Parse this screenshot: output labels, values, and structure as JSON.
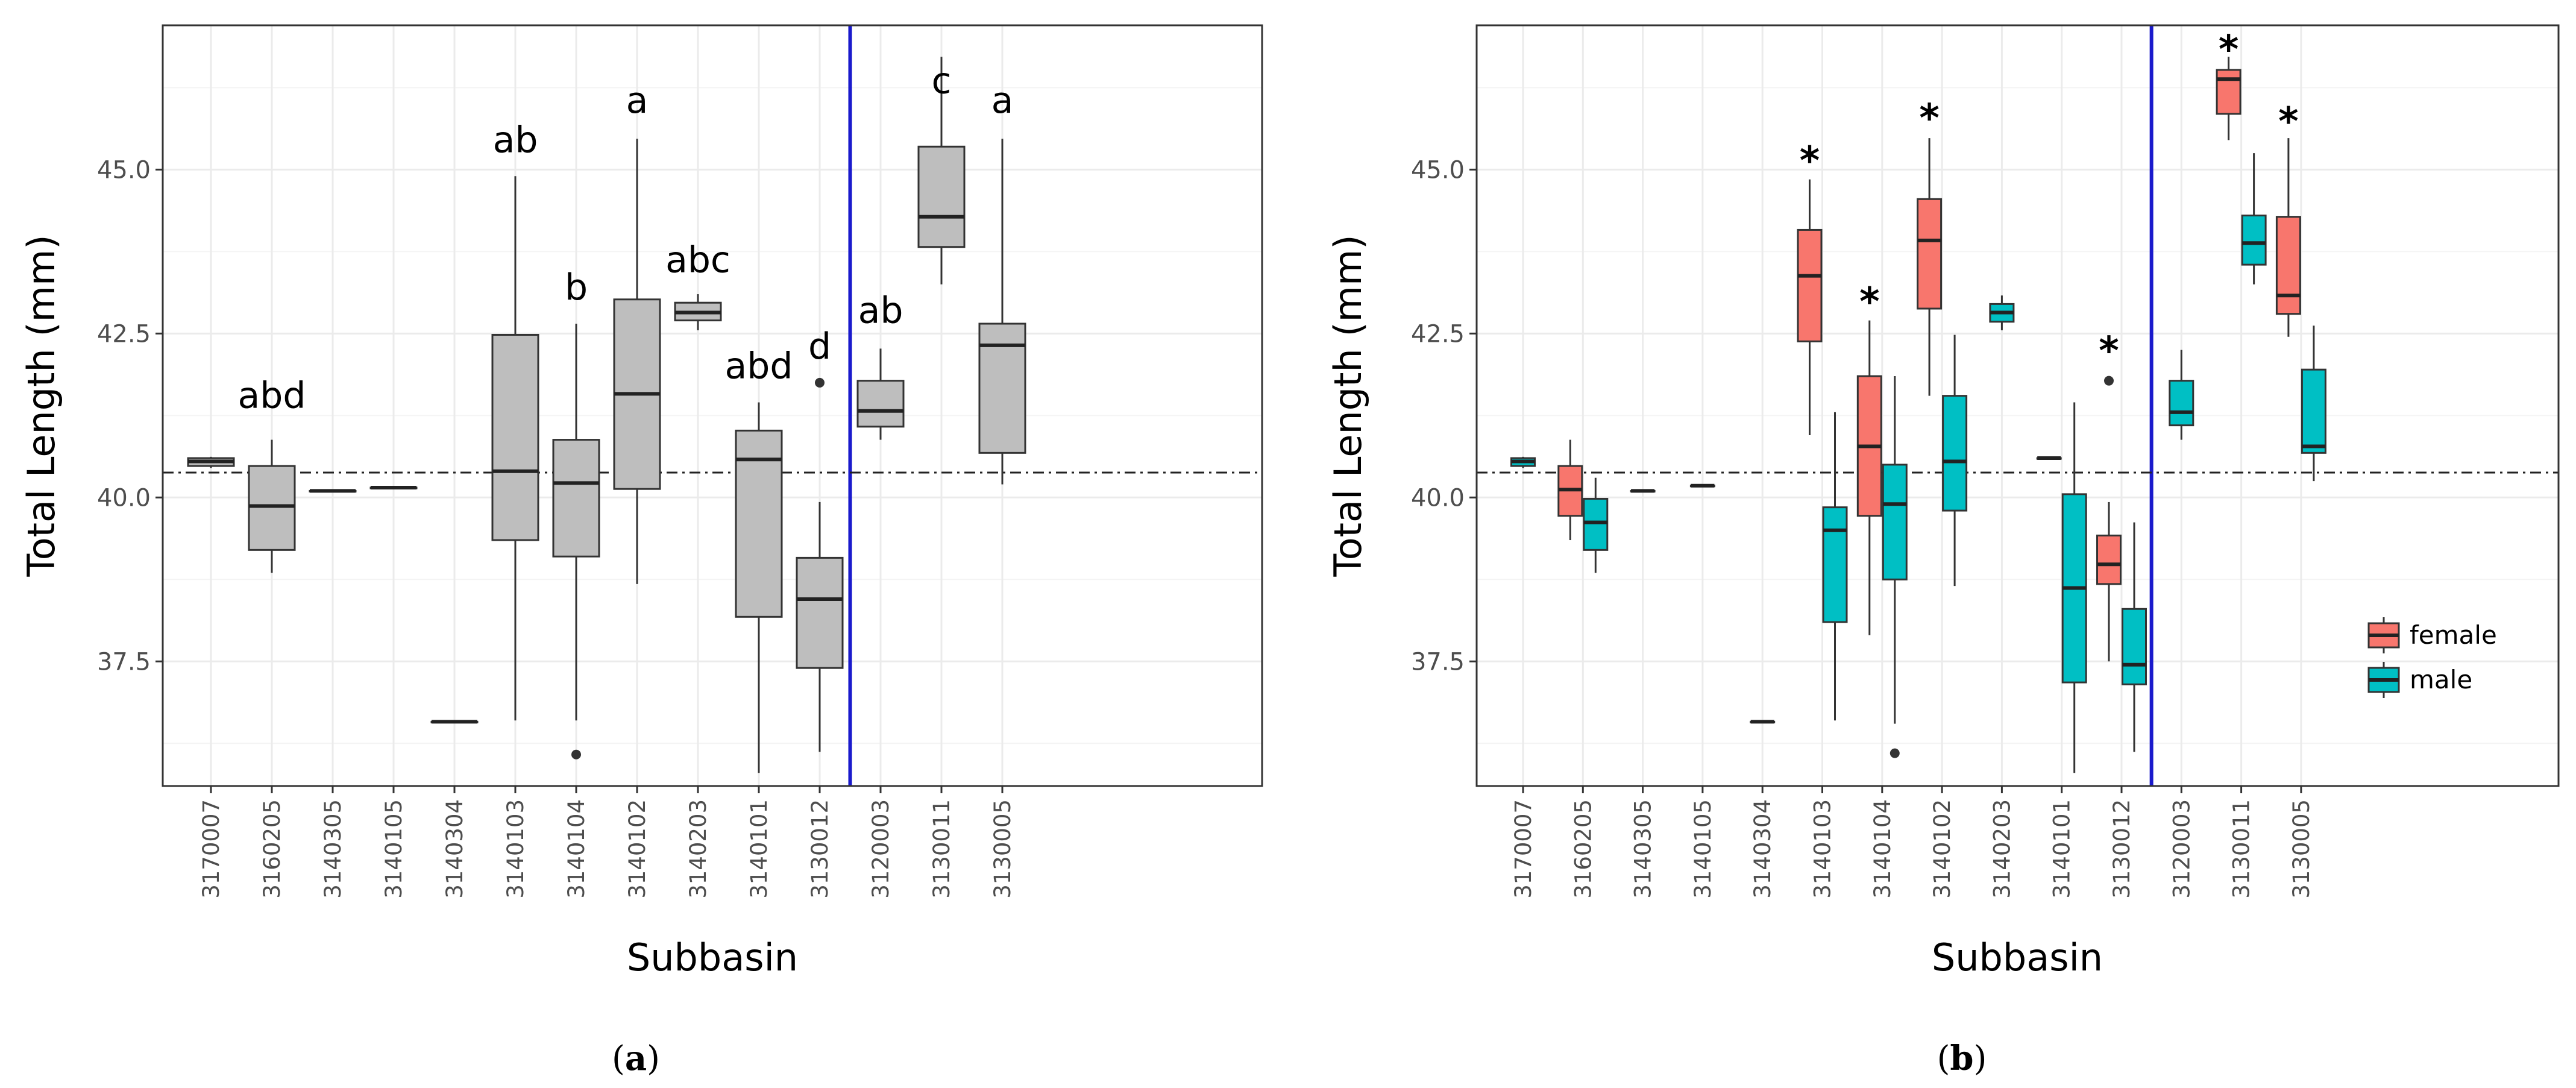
{
  "chart_data": [
    {
      "type": "boxplot",
      "panel_label": "a",
      "xlabel": "Subbasin",
      "ylabel": "Total Length (mm)",
      "ylim": [
        35.6,
        47.2
      ],
      "yticks": [
        37.5,
        40.0,
        42.5,
        45.0
      ],
      "ytick_labels": [
        "37.5",
        "40.0",
        "42.5",
        "45.0"
      ],
      "reference_line": 40.38,
      "divider_after_category": "3130012",
      "categories": [
        "3170007",
        "3160205",
        "3140305",
        "3140105",
        "3140304",
        "3140103",
        "3140104",
        "3140102",
        "3140203",
        "3140101",
        "3130012",
        "3120003",
        "3130011",
        "3130005"
      ],
      "series": [
        {
          "name": "all",
          "color": "#bebebe",
          "boxes": [
            {
              "category": "3170007",
              "min": 40.45,
              "q1": 40.48,
              "median": 40.55,
              "q3": 40.6,
              "max": 40.62,
              "outliers": []
            },
            {
              "category": "3160205",
              "min": 38.85,
              "q1": 39.2,
              "median": 39.87,
              "q3": 40.48,
              "max": 40.88,
              "outliers": []
            },
            {
              "category": "3140305",
              "min": 40.1,
              "q1": 40.1,
              "median": 40.1,
              "q3": 40.1,
              "max": 40.1,
              "outliers": []
            },
            {
              "category": "3140105",
              "min": 40.15,
              "q1": 40.15,
              "median": 40.15,
              "q3": 40.15,
              "max": 40.15,
              "outliers": []
            },
            {
              "category": "3140304",
              "min": 36.58,
              "q1": 36.58,
              "median": 36.58,
              "q3": 36.58,
              "max": 36.58,
              "outliers": []
            },
            {
              "category": "3140103",
              "min": 36.6,
              "q1": 39.35,
              "median": 40.4,
              "q3": 42.48,
              "max": 44.9,
              "outliers": []
            },
            {
              "category": "3140104",
              "min": 36.6,
              "q1": 39.1,
              "median": 40.22,
              "q3": 40.88,
              "max": 42.65,
              "outliers": [
                36.08
              ]
            },
            {
              "category": "3140102",
              "min": 38.68,
              "q1": 40.13,
              "median": 41.58,
              "q3": 43.02,
              "max": 45.47,
              "outliers": []
            },
            {
              "category": "3140203",
              "min": 42.55,
              "q1": 42.7,
              "median": 42.82,
              "q3": 42.97,
              "max": 43.1,
              "outliers": []
            },
            {
              "category": "3140101",
              "min": 35.8,
              "q1": 38.18,
              "median": 40.58,
              "q3": 41.02,
              "max": 41.45,
              "outliers": []
            },
            {
              "category": "3130012",
              "min": 36.12,
              "q1": 37.4,
              "median": 38.45,
              "q3": 39.08,
              "max": 39.93,
              "outliers": [
                41.75
              ]
            },
            {
              "category": "3120003",
              "min": 40.88,
              "q1": 41.08,
              "median": 41.32,
              "q3": 41.78,
              "max": 42.27,
              "outliers": []
            },
            {
              "category": "3130011",
              "min": 43.25,
              "q1": 43.82,
              "median": 44.28,
              "q3": 45.35,
              "max": 46.72,
              "outliers": []
            },
            {
              "category": "3130005",
              "min": 40.2,
              "q1": 40.68,
              "median": 42.32,
              "q3": 42.65,
              "max": 45.47,
              "outliers": []
            }
          ]
        }
      ],
      "annotations": [
        {
          "category": "3160205",
          "text": "abd",
          "y": 41.55
        },
        {
          "category": "3140103",
          "text": "ab",
          "y": 45.45
        },
        {
          "category": "3140104",
          "text": "b",
          "y": 43.2
        },
        {
          "category": "3140102",
          "text": "a",
          "y": 46.05
        },
        {
          "category": "3140203",
          "text": "abc",
          "y": 43.62
        },
        {
          "category": "3140101",
          "text": "abd",
          "y": 42.0
        },
        {
          "category": "3130012",
          "text": "d",
          "y": 42.3
        },
        {
          "category": "3120003",
          "text": "ab",
          "y": 42.85
        },
        {
          "category": "3130011",
          "text": "c",
          "y": 46.35
        },
        {
          "category": "3130005",
          "text": "a",
          "y": 46.05
        }
      ]
    },
    {
      "type": "boxplot",
      "panel_label": "b",
      "xlabel": "Subbasin",
      "ylabel": "Total Length (mm)",
      "ylim": [
        35.6,
        47.2
      ],
      "yticks": [
        37.5,
        40.0,
        42.5,
        45.0
      ],
      "ytick_labels": [
        "37.5",
        "40.0",
        "42.5",
        "45.0"
      ],
      "reference_line": 40.38,
      "divider_after_category": "3130012",
      "categories": [
        "3170007",
        "3160205",
        "3140305",
        "3140105",
        "3140304",
        "3140103",
        "3140104",
        "3140102",
        "3140203",
        "3140101",
        "3130012",
        "3120003",
        "3130011",
        "3130005"
      ],
      "legend": {
        "position": "bottom-right",
        "items": [
          {
            "name": "female",
            "color": "#f8766d"
          },
          {
            "name": "male",
            "color": "#00bfc4"
          }
        ]
      },
      "series": [
        {
          "name": "female",
          "color": "#f8766d",
          "boxes": [
            {
              "category": "3160205",
              "min": 39.35,
              "q1": 39.72,
              "median": 40.12,
              "q3": 40.48,
              "max": 40.88,
              "outliers": []
            },
            {
              "category": "3140103",
              "min": 40.95,
              "q1": 42.38,
              "median": 43.38,
              "q3": 44.08,
              "max": 44.85,
              "outliers": []
            },
            {
              "category": "3140104",
              "min": 37.9,
              "q1": 39.72,
              "median": 40.78,
              "q3": 41.85,
              "max": 42.7,
              "outliers": []
            },
            {
              "category": "3140102",
              "min": 41.55,
              "q1": 42.88,
              "median": 43.92,
              "q3": 44.55,
              "max": 45.48,
              "outliers": []
            },
            {
              "category": "3140101",
              "min": 40.6,
              "q1": 40.6,
              "median": 40.6,
              "q3": 40.6,
              "max": 40.6,
              "outliers": []
            },
            {
              "category": "3130012",
              "min": 37.5,
              "q1": 38.68,
              "median": 38.98,
              "q3": 39.42,
              "max": 39.93,
              "outliers": [
                41.78
              ]
            },
            {
              "category": "3130011",
              "min": 45.45,
              "q1": 45.85,
              "median": 46.38,
              "q3": 46.52,
              "max": 46.72,
              "outliers": []
            },
            {
              "category": "3130005",
              "min": 42.45,
              "q1": 42.8,
              "median": 43.08,
              "q3": 44.28,
              "max": 45.48,
              "outliers": []
            }
          ]
        },
        {
          "name": "male",
          "color": "#00bfc4",
          "boxes": [
            {
              "category": "3170007",
              "min": 40.45,
              "q1": 40.48,
              "median": 40.55,
              "q3": 40.6,
              "max": 40.62,
              "outliers": []
            },
            {
              "category": "3160205",
              "min": 38.85,
              "q1": 39.2,
              "median": 39.62,
              "q3": 39.98,
              "max": 40.3,
              "outliers": []
            },
            {
              "category": "3140305",
              "min": 40.1,
              "q1": 40.1,
              "median": 40.1,
              "q3": 40.1,
              "max": 40.1,
              "outliers": []
            },
            {
              "category": "3140105",
              "min": 40.18,
              "q1": 40.18,
              "median": 40.18,
              "q3": 40.18,
              "max": 40.18,
              "outliers": []
            },
            {
              "category": "3140304",
              "min": 36.58,
              "q1": 36.58,
              "median": 36.58,
              "q3": 36.58,
              "max": 36.58,
              "outliers": []
            },
            {
              "category": "3140103",
              "min": 36.6,
              "q1": 38.1,
              "median": 39.5,
              "q3": 39.85,
              "max": 41.3,
              "outliers": []
            },
            {
              "category": "3140104",
              "min": 36.55,
              "q1": 38.75,
              "median": 39.9,
              "q3": 40.5,
              "max": 41.85,
              "outliers": [
                36.1
              ]
            },
            {
              "category": "3140102",
              "min": 38.65,
              "q1": 39.8,
              "median": 40.55,
              "q3": 41.55,
              "max": 42.48,
              "outliers": []
            },
            {
              "category": "3140203",
              "min": 42.55,
              "q1": 42.68,
              "median": 42.82,
              "q3": 42.95,
              "max": 43.08,
              "outliers": []
            },
            {
              "category": "3140101",
              "min": 35.8,
              "q1": 37.18,
              "median": 38.62,
              "q3": 40.05,
              "max": 41.45,
              "outliers": []
            },
            {
              "category": "3130012",
              "min": 36.12,
              "q1": 37.15,
              "median": 37.45,
              "q3": 38.3,
              "max": 39.62,
              "outliers": []
            },
            {
              "category": "3120003",
              "min": 40.88,
              "q1": 41.1,
              "median": 41.3,
              "q3": 41.78,
              "max": 42.25,
              "outliers": []
            },
            {
              "category": "3130011",
              "min": 43.25,
              "q1": 43.55,
              "median": 43.88,
              "q3": 44.3,
              "max": 45.25,
              "outliers": []
            },
            {
              "category": "3130005",
              "min": 40.25,
              "q1": 40.68,
              "median": 40.78,
              "q3": 41.95,
              "max": 42.62,
              "outliers": []
            }
          ]
        }
      ],
      "annotations": [
        {
          "category": "3140103",
          "text": "*",
          "y": 45.3
        },
        {
          "category": "3140104",
          "text": "*",
          "y": 43.15
        },
        {
          "category": "3140102",
          "text": "*",
          "y": 45.95
        },
        {
          "category": "3130012",
          "text": "*",
          "y": 42.4
        },
        {
          "category": "3130011",
          "text": "*",
          "y": 47.0
        },
        {
          "category": "3130005",
          "text": "*",
          "y": 45.9
        }
      ]
    }
  ]
}
